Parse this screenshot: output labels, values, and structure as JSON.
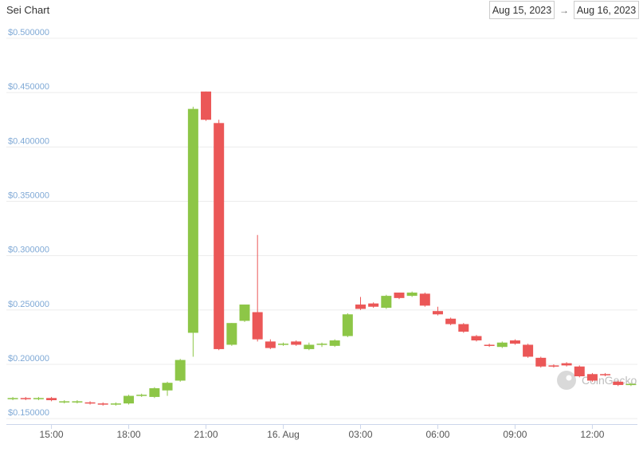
{
  "chart_data": {
    "type": "candlestick",
    "title": "Sei Chart",
    "date_range": {
      "start": "Aug 15, 2023",
      "separator": "→",
      "end": "Aug 16, 2023"
    },
    "watermark": "CoinGecko",
    "categories": [
      null,
      null,
      null,
      "15:00",
      null,
      null,
      null,
      null,
      null,
      "18:00",
      null,
      null,
      null,
      null,
      null,
      "21:00",
      null,
      null,
      null,
      null,
      null,
      "16. Aug",
      null,
      null,
      null,
      null,
      null,
      "03:00",
      null,
      null,
      null,
      null,
      null,
      "06:00",
      null,
      null,
      null,
      null,
      null,
      "09:00",
      null,
      null,
      null,
      null,
      null,
      "12:00",
      null,
      null,
      null
    ],
    "open": [
      0.168,
      0.169,
      0.168,
      0.169,
      0.165,
      0.165,
      0.165,
      0.164,
      0.163,
      0.164,
      0.171,
      0.17,
      0.176,
      0.185,
      0.229,
      0.451,
      0.422,
      0.218,
      0.24,
      0.248,
      0.221,
      0.218,
      0.221,
      0.214,
      0.218,
      0.217,
      0.226,
      0.255,
      0.256,
      0.252,
      0.266,
      0.263,
      0.265,
      0.249,
      0.242,
      0.237,
      0.226,
      0.218,
      0.216,
      0.222,
      0.218,
      0.206,
      0.199,
      0.201,
      0.198,
      0.191,
      0.191,
      0.184,
      0.181
    ],
    "high": [
      0.17,
      0.17,
      0.17,
      0.17,
      0.167,
      0.167,
      0.166,
      0.165,
      0.165,
      0.172,
      0.173,
      0.179,
      0.184,
      0.205,
      0.437,
      0.451,
      0.425,
      0.238,
      0.255,
      0.319,
      0.223,
      0.22,
      0.222,
      0.22,
      0.22,
      0.223,
      0.247,
      0.262,
      0.257,
      0.264,
      0.266,
      0.267,
      0.266,
      0.253,
      0.243,
      0.238,
      0.227,
      0.219,
      0.221,
      0.223,
      0.219,
      0.207,
      0.2,
      0.202,
      0.199,
      0.192,
      0.192,
      0.185,
      0.183
    ],
    "low": [
      0.167,
      0.167,
      0.167,
      0.166,
      0.164,
      0.164,
      0.163,
      0.162,
      0.162,
      0.163,
      0.17,
      0.169,
      0.171,
      0.184,
      0.207,
      0.424,
      0.213,
      0.217,
      0.239,
      0.221,
      0.214,
      0.217,
      0.217,
      0.213,
      0.216,
      0.216,
      0.225,
      0.25,
      0.252,
      0.251,
      0.26,
      0.262,
      0.253,
      0.245,
      0.236,
      0.229,
      0.221,
      0.216,
      0.215,
      0.218,
      0.206,
      0.197,
      0.197,
      0.198,
      0.188,
      0.184,
      0.189,
      0.18,
      0.18
    ],
    "close": [
      0.169,
      0.168,
      0.169,
      0.167,
      0.166,
      0.166,
      0.164,
      0.163,
      0.164,
      0.171,
      0.172,
      0.178,
      0.183,
      0.204,
      0.435,
      0.425,
      0.214,
      0.238,
      0.255,
      0.223,
      0.215,
      0.219,
      0.218,
      0.218,
      0.219,
      0.222,
      0.246,
      0.251,
      0.253,
      0.263,
      0.261,
      0.266,
      0.254,
      0.246,
      0.237,
      0.23,
      0.222,
      0.217,
      0.22,
      0.219,
      0.207,
      0.198,
      0.198,
      0.199,
      0.189,
      0.185,
      0.19,
      0.181,
      0.182
    ],
    "up_color": "#8dc647",
    "down_color": "#eb5757",
    "ylim": [
      0.145,
      0.5
    ],
    "yticks": [
      {
        "value": 0.15,
        "label": "$0.150000"
      },
      {
        "value": 0.2,
        "label": "$0.200000"
      },
      {
        "value": 0.25,
        "label": "$0.250000"
      },
      {
        "value": 0.3,
        "label": "$0.300000"
      },
      {
        "value": 0.35,
        "label": "$0.350000"
      },
      {
        "value": 0.4,
        "label": "$0.400000"
      },
      {
        "value": 0.45,
        "label": "$0.450000"
      },
      {
        "value": 0.5,
        "label": "$0.500000"
      }
    ],
    "grid": true
  }
}
